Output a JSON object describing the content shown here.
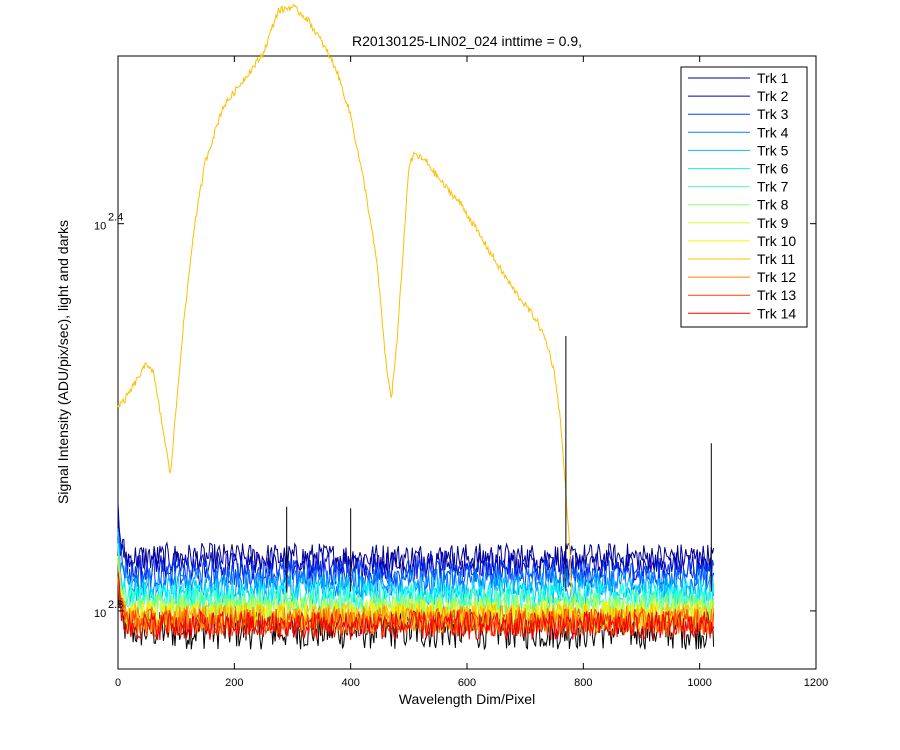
{
  "chart_data": {
    "type": "line",
    "title": "R20130125-LIN02_024 inttime = 0.9,",
    "xlabel": "Wavelength Dim/Pixel",
    "ylabel": "Signal Intensity (ADU/pix/sec), light and darks",
    "xlim": [
      0,
      1200
    ],
    "ylim_log10": [
      2.285,
      2.4433
    ],
    "yscale": "log",
    "grid": false,
    "legend_position": "top-right",
    "x_ticks": [
      0,
      200,
      400,
      600,
      800,
      1000,
      1200
    ],
    "x_tick_labels": [
      "0",
      "200",
      "400",
      "600",
      "800",
      "1000",
      "1200"
    ],
    "y_ticks": [
      {
        "base": "10",
        "exp": "2.3",
        "log10": 2.3
      },
      {
        "base": "10",
        "exp": "2.4",
        "log10": 2.4
      }
    ],
    "series": [
      {
        "name": "Trk 1",
        "color": "#00008f",
        "baseline_log10": 2.3138
      },
      {
        "name": "Trk 2",
        "color": "#0000bf",
        "baseline_log10": 2.3117
      },
      {
        "name": "Trk 3",
        "color": "#0040ff",
        "baseline_log10": 2.3096
      },
      {
        "name": "Trk 4",
        "color": "#0080ff",
        "baseline_log10": 2.3073
      },
      {
        "name": "Trk 5",
        "color": "#00bfff",
        "baseline_log10": 2.3053
      },
      {
        "name": "Trk 6",
        "color": "#10ffef",
        "baseline_log10": 2.3037
      },
      {
        "name": "Trk 7",
        "color": "#50ffaf",
        "baseline_log10": 2.302
      },
      {
        "name": "Trk 8",
        "color": "#8fff70",
        "baseline_log10": 2.3008
      },
      {
        "name": "Trk 9",
        "color": "#cfff30",
        "baseline_log10": 2.2996
      },
      {
        "name": "Trk 10",
        "color": "#ffef00",
        "baseline_log10": 2.2988
      },
      {
        "name": "Trk 11",
        "color": "#ffbf00",
        "baseline_log10": 2.2982,
        "light_curve": {
          "x": [
            0,
            10,
            30,
            50,
            60,
            75,
            90,
            110,
            130,
            150,
            180,
            220,
            250,
            275,
            300,
            325,
            350,
            375,
            400,
            425,
            445,
            462,
            470,
            480,
            500,
            510,
            530,
            560,
            590,
            610,
            630,
            650,
            680,
            700,
            720,
            735,
            745,
            752,
            760,
            768,
            775,
            780,
            785,
            800
          ],
          "y_log10": [
            2.353,
            2.354,
            2.359,
            2.364,
            2.362,
            2.349,
            2.335,
            2.37,
            2.398,
            2.416,
            2.43,
            2.438,
            2.444,
            2.455,
            2.456,
            2.453,
            2.447,
            2.44,
            2.428,
            2.409,
            2.39,
            2.362,
            2.355,
            2.37,
            2.415,
            2.418,
            2.416,
            2.41,
            2.405,
            2.4,
            2.395,
            2.39,
            2.383,
            2.379,
            2.375,
            2.37,
            2.365,
            2.36,
            2.35,
            2.335,
            2.32,
            2.305,
            2.299,
            2.2985
          ]
        }
      },
      {
        "name": "Trk 12",
        "color": "#ff8000",
        "baseline_log10": 2.2976
      },
      {
        "name": "Trk 13",
        "color": "#ff4000",
        "baseline_log10": 2.2969
      },
      {
        "name": "Trk 14",
        "color": "#ef0000",
        "baseline_log10": 2.2962
      }
    ],
    "dark_trace": {
      "color": "#000000",
      "baseline_log10": 2.295
    }
  }
}
